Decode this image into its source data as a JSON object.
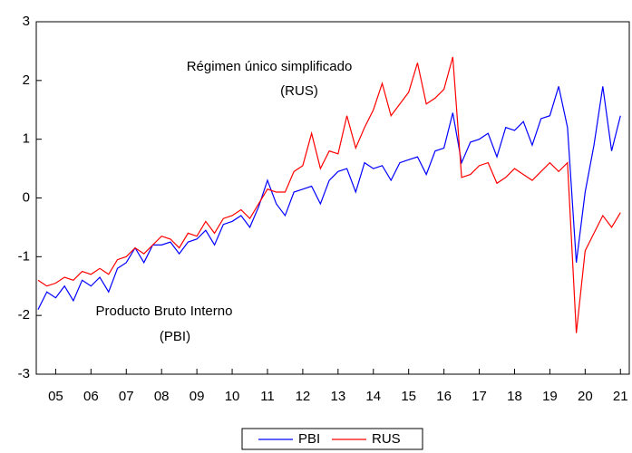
{
  "chart_data": {
    "type": "line",
    "annotations": [
      {
        "lines": [
          "Régimen único simplificado",
          "(RUS)"
        ]
      },
      {
        "lines": [
          "Producto Bruto Interno",
          "(PBI)"
        ]
      }
    ],
    "x": [
      2005,
      2005.25,
      2005.5,
      2005.75,
      2006,
      2006.25,
      2006.5,
      2006.75,
      2007,
      2007.25,
      2007.5,
      2007.75,
      2008,
      2008.25,
      2008.5,
      2008.75,
      2009,
      2009.25,
      2009.5,
      2009.75,
      2010,
      2010.25,
      2010.5,
      2010.75,
      2011,
      2011.25,
      2011.5,
      2011.75,
      2012,
      2012.25,
      2012.5,
      2012.75,
      2013,
      2013.25,
      2013.5,
      2013.75,
      2014,
      2014.25,
      2014.5,
      2014.75,
      2015,
      2015.25,
      2015.5,
      2015.75,
      2016,
      2016.25,
      2016.5,
      2016.75,
      2017,
      2017.25,
      2017.5,
      2017.75,
      2018,
      2018.25,
      2018.5,
      2018.75,
      2019,
      2019.25,
      2019.5,
      2019.75,
      2020,
      2020.25,
      2020.5,
      2020.75,
      2021,
      2021.25,
      2021.5
    ],
    "series": [
      {
        "name": "PBI",
        "color": "#0000ff",
        "values": [
          -1.9,
          -1.6,
          -1.7,
          -1.5,
          -1.75,
          -1.4,
          -1.5,
          -1.35,
          -1.6,
          -1.2,
          -1.1,
          -0.85,
          -1.1,
          -0.8,
          -0.8,
          -0.75,
          -0.95,
          -0.75,
          -0.7,
          -0.55,
          -0.8,
          -0.45,
          -0.4,
          -0.3,
          -0.5,
          -0.15,
          0.3,
          -0.1,
          -0.3,
          0.1,
          0.15,
          0.2,
          -0.1,
          0.3,
          0.45,
          0.5,
          0.1,
          0.6,
          0.5,
          0.55,
          0.3,
          0.6,
          0.65,
          0.7,
          0.4,
          0.8,
          0.85,
          1.45,
          0.6,
          0.95,
          1.0,
          1.1,
          0.7,
          1.2,
          1.15,
          1.3,
          0.9,
          1.35,
          1.4,
          1.9,
          1.2,
          -1.1,
          0.1,
          0.9,
          1.9,
          0.8,
          1.4
        ]
      },
      {
        "name": "RUS",
        "color": "#ff0000",
        "values": [
          -1.4,
          -1.5,
          -1.45,
          -1.35,
          -1.4,
          -1.25,
          -1.3,
          -1.2,
          -1.3,
          -1.05,
          -1.0,
          -0.85,
          -0.95,
          -0.8,
          -0.65,
          -0.7,
          -0.85,
          -0.6,
          -0.65,
          -0.4,
          -0.6,
          -0.35,
          -0.3,
          -0.2,
          -0.35,
          -0.1,
          0.15,
          0.1,
          0.1,
          0.45,
          0.55,
          1.1,
          0.5,
          0.8,
          0.75,
          1.4,
          0.85,
          1.2,
          1.5,
          1.95,
          1.4,
          1.6,
          1.8,
          2.3,
          1.6,
          1.7,
          1.85,
          2.4,
          0.35,
          0.4,
          0.55,
          0.6,
          0.25,
          0.35,
          0.5,
          0.4,
          0.3,
          0.45,
          0.6,
          0.45,
          0.6,
          -2.3,
          -0.9,
          -0.6,
          -0.3,
          -0.5,
          -0.25
        ]
      }
    ],
    "xlim": [
      2004.95,
      2021.75
    ],
    "xticks": [
      {
        "value": 2005.5,
        "label": "05"
      },
      {
        "value": 2006.5,
        "label": "06"
      },
      {
        "value": 2007.5,
        "label": "07"
      },
      {
        "value": 2008.5,
        "label": "08"
      },
      {
        "value": 2009.5,
        "label": "09"
      },
      {
        "value": 2010.5,
        "label": "10"
      },
      {
        "value": 2011.5,
        "label": "11"
      },
      {
        "value": 2012.5,
        "label": "12"
      },
      {
        "value": 2013.5,
        "label": "13"
      },
      {
        "value": 2014.5,
        "label": "14"
      },
      {
        "value": 2015.5,
        "label": "15"
      },
      {
        "value": 2016.5,
        "label": "16"
      },
      {
        "value": 2017.5,
        "label": "17"
      },
      {
        "value": 2018.5,
        "label": "18"
      },
      {
        "value": 2019.5,
        "label": "19"
      },
      {
        "value": 2020.5,
        "label": "20"
      },
      {
        "value": 2021.5,
        "label": "21"
      }
    ],
    "ylim": [
      -3,
      3
    ],
    "yticks": [
      -3,
      -2,
      -1,
      0,
      1,
      2,
      3
    ],
    "grid": false,
    "legend": "bottom"
  }
}
